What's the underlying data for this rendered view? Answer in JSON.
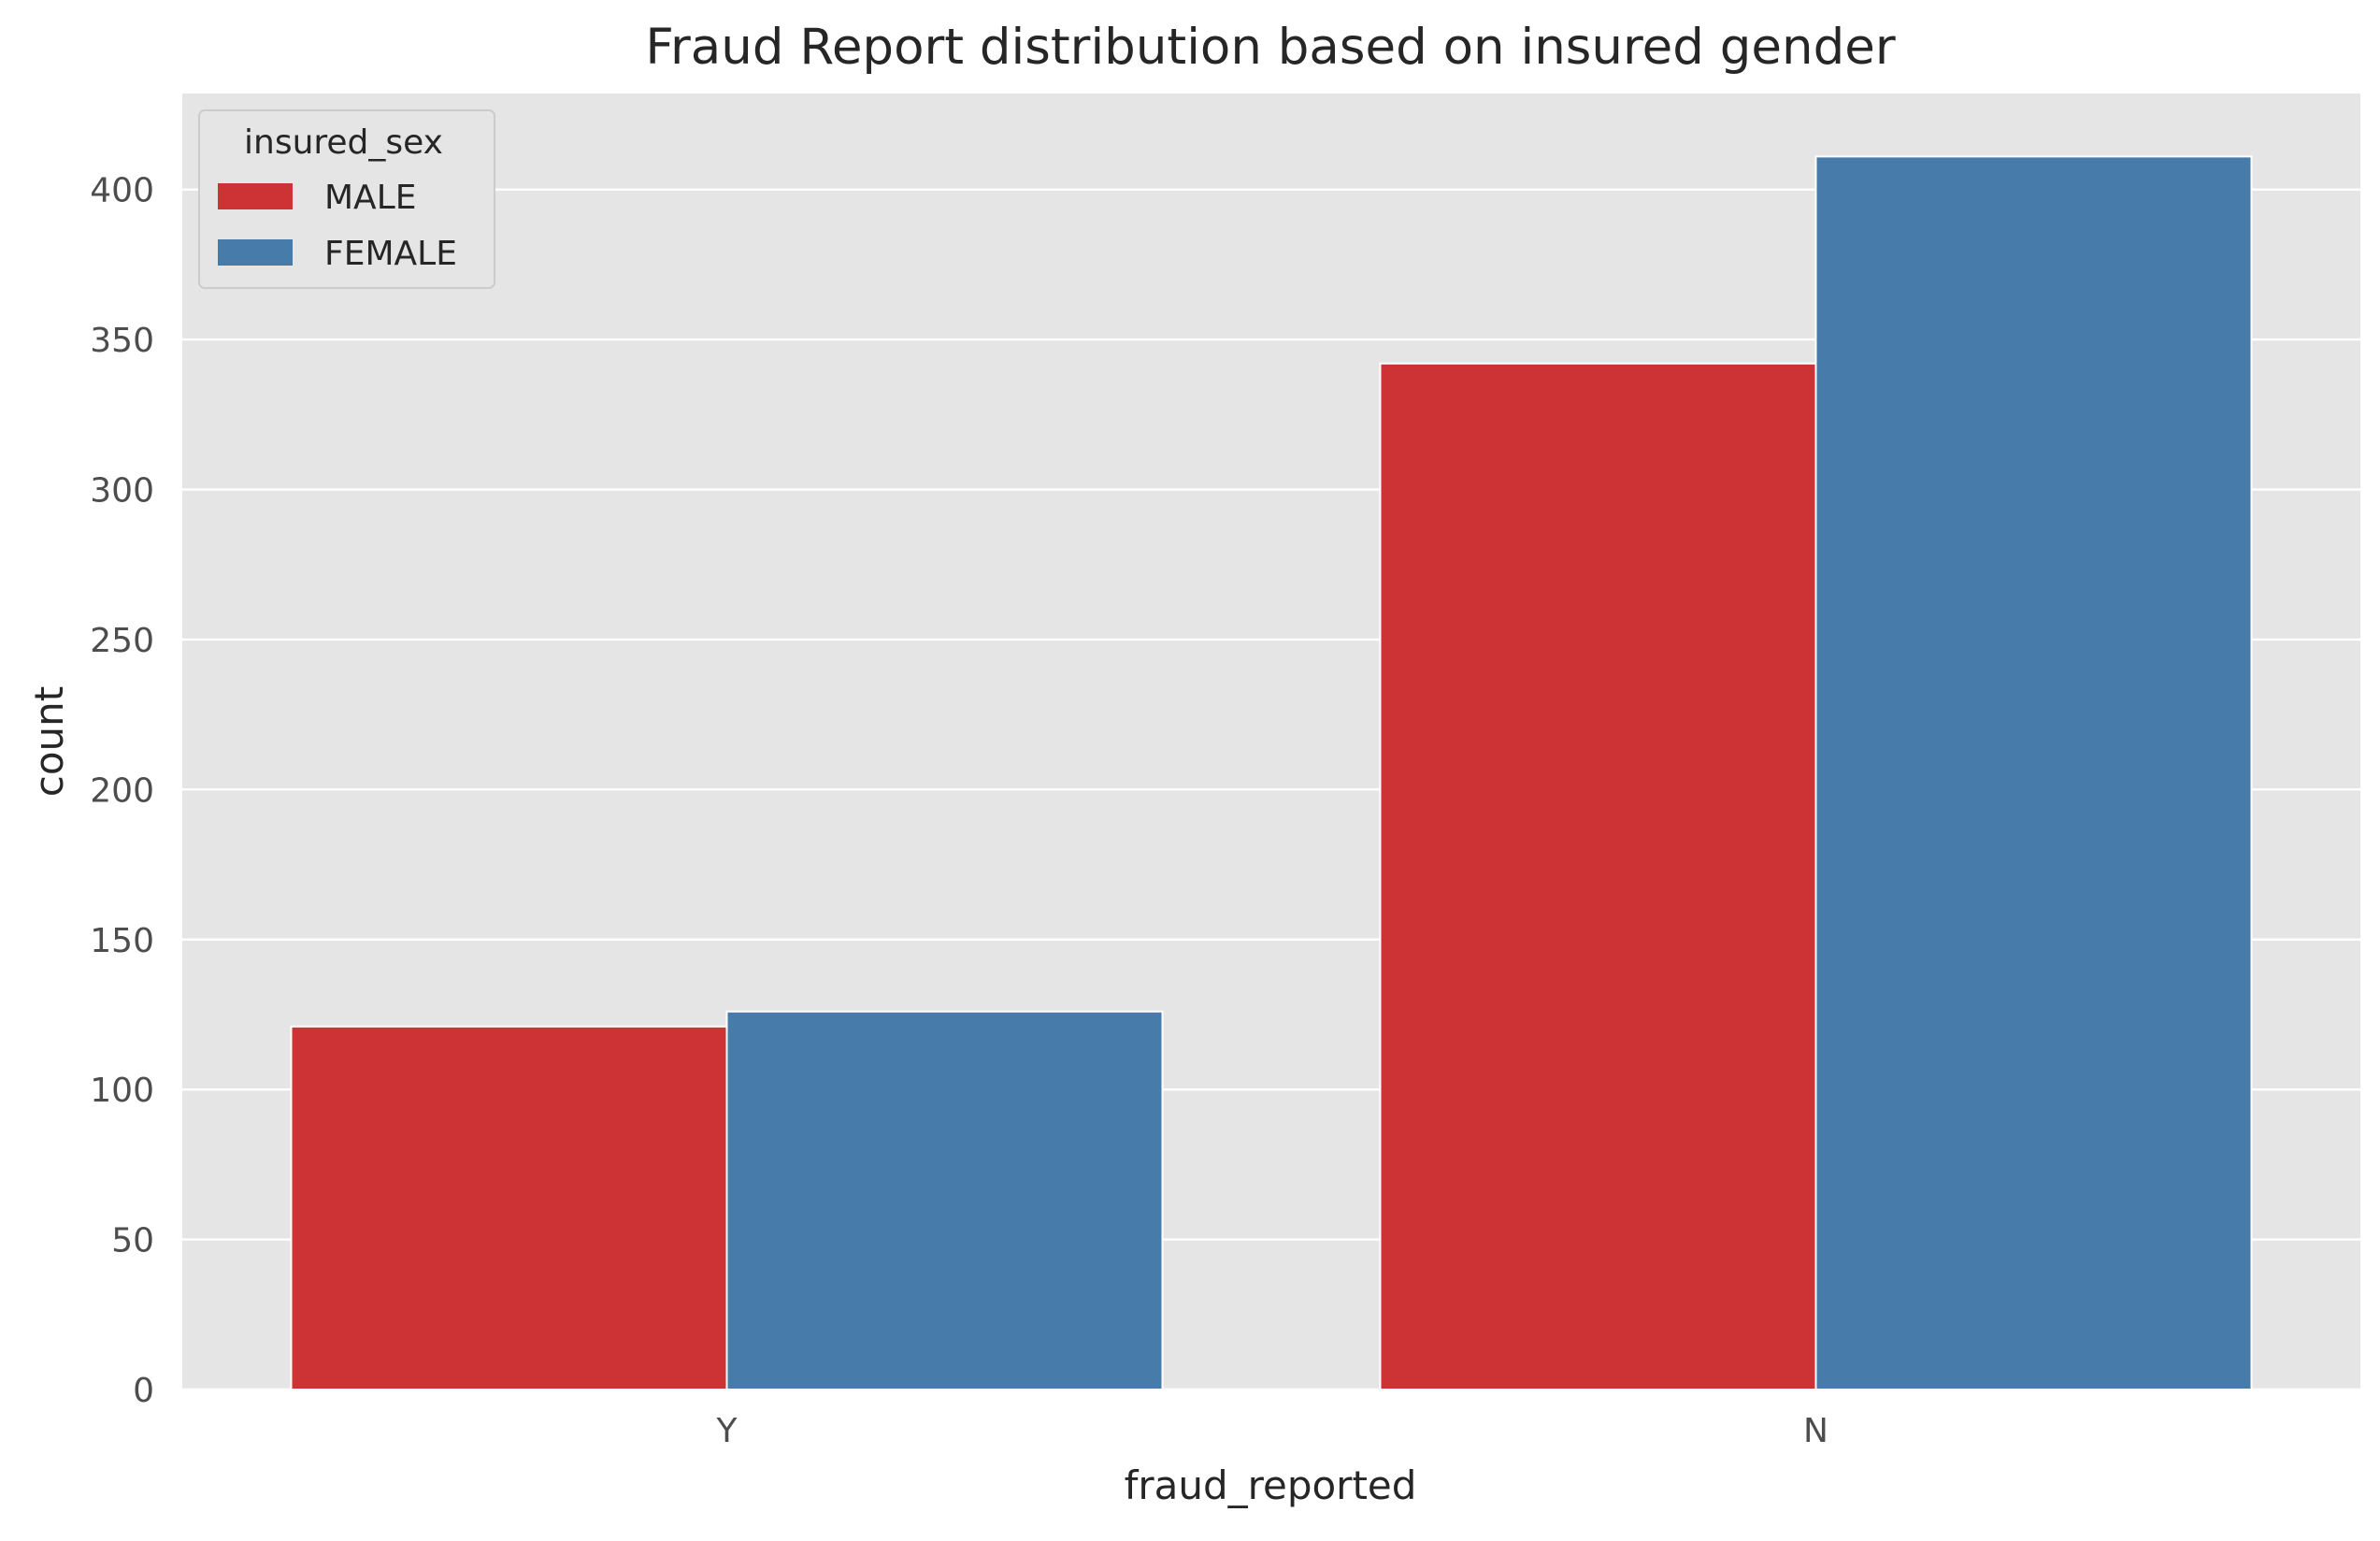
{
  "chart_data": {
    "type": "bar",
    "title": "Fraud Report distribution based on insured gender",
    "xlabel": "fraud_reported",
    "ylabel": "count",
    "categories": [
      "Y",
      "N"
    ],
    "series": [
      {
        "name": "MALE",
        "values": [
          121,
          342
        ],
        "color": "#cd3234"
      },
      {
        "name": "FEMALE",
        "values": [
          126,
          411
        ],
        "color": "#477ba9"
      }
    ],
    "ylim": [
      0,
      432
    ],
    "yticks": [
      0,
      50,
      100,
      150,
      200,
      250,
      300,
      350,
      400
    ],
    "grid": true,
    "legend": {
      "title": "insured_sex",
      "placement": "top-left"
    },
    "colors": {
      "plot_background": "#e5e5e5",
      "grid": "#ffffff",
      "text": "#262626",
      "tick_text": "#4d4d4d"
    }
  }
}
